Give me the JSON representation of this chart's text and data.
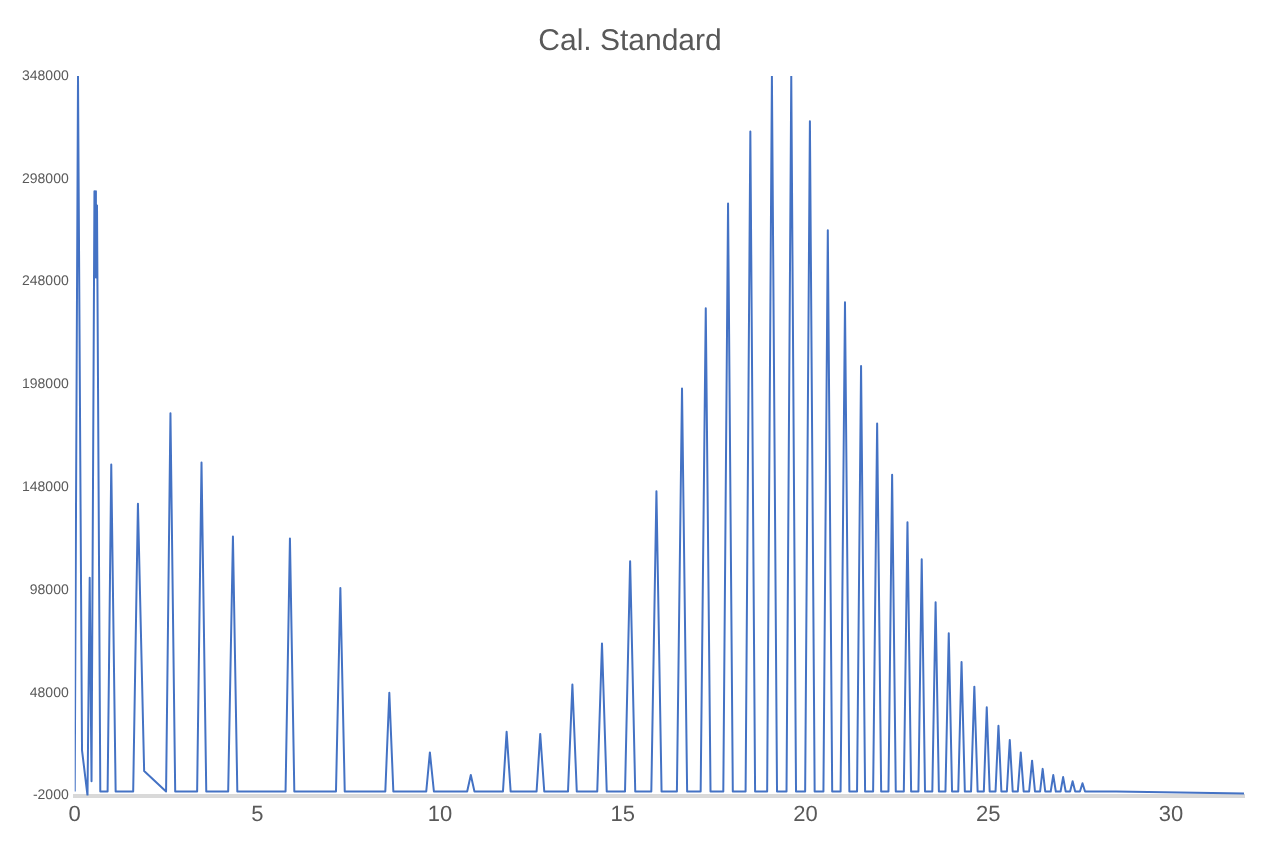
{
  "chart_data": {
    "type": "line",
    "title": "Cal. Standard",
    "xlim": [
      0,
      32
    ],
    "xticks": [
      0,
      5,
      10,
      15,
      20,
      25,
      30
    ],
    "ylim": [
      -2000,
      348000
    ],
    "yticks": [
      -2000,
      48000,
      98000,
      148000,
      198000,
      248000,
      298000,
      348000
    ],
    "grid": false,
    "legend": false,
    "marker": "none",
    "line_style": "solid",
    "series": [
      {
        "color": "#4472c4",
        "x": [
          0,
          0.09,
          0.2,
          0.35,
          0.41,
          0.46,
          0.54,
          0.58,
          0.61,
          0.7,
          0.9,
          1.0,
          1.12,
          1.6,
          1.73,
          1.9,
          2.5,
          2.62,
          2.75,
          3.35,
          3.47,
          3.6,
          4.2,
          4.33,
          4.45,
          5.77,
          5.89,
          6.01,
          7.15,
          7.27,
          7.39,
          8.5,
          8.61,
          8.72,
          9.62,
          9.72,
          9.83,
          10.74,
          10.84,
          10.94,
          11.72,
          11.82,
          11.93,
          12.64,
          12.74,
          12.85,
          13.5,
          13.62,
          13.74,
          14.3,
          14.43,
          14.56,
          15.06,
          15.2,
          15.34,
          15.78,
          15.92,
          16.06,
          16.48,
          16.62,
          16.76,
          17.13,
          17.27,
          17.4,
          17.75,
          17.88,
          18.01,
          18.36,
          18.49,
          18.62,
          18.95,
          19.08,
          19.22,
          19.48,
          19.61,
          19.74,
          19.99,
          20.12,
          20.25,
          20.49,
          20.61,
          20.73,
          20.96,
          21.08,
          21.2,
          21.41,
          21.52,
          21.63,
          21.85,
          21.96,
          22.07,
          22.27,
          22.37,
          22.47,
          22.69,
          22.79,
          22.89,
          23.09,
          23.18,
          23.27,
          23.47,
          23.56,
          23.65,
          23.83,
          23.92,
          24.01,
          24.18,
          24.27,
          24.36,
          24.53,
          24.62,
          24.71,
          24.88,
          24.96,
          25.04,
          25.2,
          25.28,
          25.36,
          25.51,
          25.59,
          25.67,
          25.81,
          25.89,
          25.97,
          26.12,
          26.2,
          26.28,
          26.42,
          26.49,
          26.56,
          26.71,
          26.78,
          26.85,
          26.98,
          27.05,
          27.12,
          27.24,
          27.31,
          27.38,
          27.51,
          27.58,
          27.65,
          28.5,
          32
        ],
        "values": [
          0,
          348000,
          20000,
          -2000,
          104000,
          5000,
          292000,
          250000,
          285000,
          0,
          0,
          159000,
          0,
          0,
          140000,
          10000,
          0,
          184000,
          0,
          0,
          160000,
          0,
          0,
          124000,
          0,
          0,
          123000,
          0,
          0,
          99000,
          0,
          0,
          48000,
          0,
          0,
          19000,
          0,
          0,
          8000,
          0,
          0,
          29000,
          0,
          0,
          28000,
          0,
          0,
          52000,
          0,
          0,
          72000,
          0,
          0,
          112000,
          0,
          0,
          146000,
          0,
          0,
          196000,
          0,
          0,
          235000,
          0,
          0,
          286000,
          0,
          0,
          321000,
          0,
          0,
          348000,
          0,
          0,
          348000,
          0,
          0,
          326000,
          0,
          0,
          273000,
          0,
          0,
          238000,
          0,
          0,
          207000,
          0,
          0,
          179000,
          0,
          0,
          154000,
          0,
          0,
          131000,
          0,
          0,
          113000,
          0,
          0,
          92000,
          0,
          0,
          77000,
          0,
          0,
          63000,
          0,
          0,
          51000,
          0,
          0,
          41000,
          0,
          0,
          32000,
          0,
          0,
          25000,
          0,
          0,
          19000,
          0,
          0,
          15000,
          0,
          0,
          11000,
          0,
          0,
          8000,
          0,
          0,
          7000,
          0,
          0,
          5000,
          0,
          0,
          4000,
          0,
          0,
          -1000
        ]
      }
    ]
  }
}
